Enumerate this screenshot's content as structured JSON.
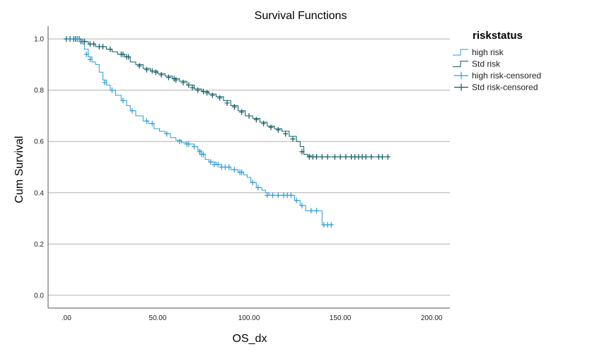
{
  "chart_data": {
    "type": "line",
    "subtype": "kaplan-meier-step",
    "title": "Survival Functions",
    "xlabel": "OS_dx",
    "ylabel": "Cum Survival",
    "xlim": [
      -10,
      210
    ],
    "ylim": [
      -0.05,
      1.05
    ],
    "x_ticks": [
      ".00",
      "50.00",
      "100.00",
      "150.00",
      "200.00"
    ],
    "x_tick_values": [
      0,
      50,
      100,
      150,
      200
    ],
    "y_ticks": [
      "0.0",
      "0.2",
      "0.4",
      "0.6",
      "0.8",
      "1.0"
    ],
    "y_tick_values": [
      0.0,
      0.2,
      0.4,
      0.6,
      0.8,
      1.0
    ],
    "grid": "horizontal",
    "legend_placement": "right",
    "legend": {
      "title": "riskstatus",
      "entries": [
        "high risk",
        "Std risk",
        "high risk-censored",
        "Std risk-censored"
      ]
    },
    "colors": {
      "high_risk": "#2e9bd6",
      "std_risk": "#0e5b63",
      "grid": "#b0b0b0",
      "axis": "#555555"
    },
    "series": [
      {
        "name": "Std risk",
        "steps": [
          [
            0,
            1.0
          ],
          [
            8,
            0.99
          ],
          [
            12,
            0.98
          ],
          [
            16,
            0.97
          ],
          [
            22,
            0.96
          ],
          [
            25,
            0.95
          ],
          [
            28,
            0.94
          ],
          [
            32,
            0.93
          ],
          [
            35,
            0.91
          ],
          [
            38,
            0.9
          ],
          [
            42,
            0.885
          ],
          [
            46,
            0.875
          ],
          [
            50,
            0.865
          ],
          [
            54,
            0.855
          ],
          [
            58,
            0.845
          ],
          [
            62,
            0.835
          ],
          [
            66,
            0.82
          ],
          [
            70,
            0.805
          ],
          [
            74,
            0.795
          ],
          [
            78,
            0.785
          ],
          [
            82,
            0.775
          ],
          [
            86,
            0.76
          ],
          [
            90,
            0.74
          ],
          [
            94,
            0.72
          ],
          [
            98,
            0.7
          ],
          [
            102,
            0.69
          ],
          [
            106,
            0.675
          ],
          [
            110,
            0.66
          ],
          [
            114,
            0.65
          ],
          [
            118,
            0.64
          ],
          [
            122,
            0.62
          ],
          [
            126,
            0.6
          ],
          [
            128,
            0.58
          ],
          [
            130,
            0.55
          ],
          [
            132,
            0.545
          ],
          [
            134,
            0.54
          ],
          [
            177,
            0.54
          ]
        ],
        "censored": [
          [
            0,
            1.0
          ],
          [
            2,
            1.0
          ],
          [
            4,
            1.0
          ],
          [
            5,
            1.0
          ],
          [
            6,
            1.0
          ],
          [
            7,
            1.0
          ],
          [
            8,
            0.99
          ],
          [
            9,
            0.99
          ],
          [
            10,
            0.99
          ],
          [
            13,
            0.98
          ],
          [
            15,
            0.98
          ],
          [
            18,
            0.97
          ],
          [
            20,
            0.97
          ],
          [
            24,
            0.96
          ],
          [
            30,
            0.94
          ],
          [
            31,
            0.94
          ],
          [
            33,
            0.93
          ],
          [
            34,
            0.93
          ],
          [
            40,
            0.895
          ],
          [
            44,
            0.88
          ],
          [
            47,
            0.875
          ],
          [
            49,
            0.87
          ],
          [
            52,
            0.86
          ],
          [
            56,
            0.85
          ],
          [
            59,
            0.845
          ],
          [
            60,
            0.84
          ],
          [
            64,
            0.83
          ],
          [
            67,
            0.82
          ],
          [
            69,
            0.81
          ],
          [
            72,
            0.8
          ],
          [
            75,
            0.795
          ],
          [
            77,
            0.79
          ],
          [
            80,
            0.78
          ],
          [
            84,
            0.77
          ],
          [
            88,
            0.75
          ],
          [
            92,
            0.735
          ],
          [
            96,
            0.715
          ],
          [
            100,
            0.7
          ],
          [
            104,
            0.685
          ],
          [
            108,
            0.67
          ],
          [
            112,
            0.655
          ],
          [
            116,
            0.645
          ],
          [
            120,
            0.63
          ],
          [
            124,
            0.61
          ],
          [
            129,
            0.56
          ],
          [
            133,
            0.54
          ],
          [
            135,
            0.54
          ],
          [
            137,
            0.54
          ],
          [
            140,
            0.54
          ],
          [
            143,
            0.54
          ],
          [
            147,
            0.54
          ],
          [
            150,
            0.54
          ],
          [
            153,
            0.54
          ],
          [
            156,
            0.54
          ],
          [
            158,
            0.54
          ],
          [
            160,
            0.54
          ],
          [
            162,
            0.54
          ],
          [
            164,
            0.54
          ],
          [
            167,
            0.54
          ],
          [
            171,
            0.54
          ],
          [
            173,
            0.54
          ],
          [
            176,
            0.54
          ]
        ]
      },
      {
        "name": "high risk",
        "steps": [
          [
            0,
            1.0
          ],
          [
            7,
            0.99
          ],
          [
            9,
            0.98
          ],
          [
            10,
            0.96
          ],
          [
            12,
            0.93
          ],
          [
            14,
            0.91
          ],
          [
            16,
            0.9
          ],
          [
            18,
            0.87
          ],
          [
            20,
            0.84
          ],
          [
            22,
            0.82
          ],
          [
            24,
            0.8
          ],
          [
            27,
            0.78
          ],
          [
            30,
            0.76
          ],
          [
            33,
            0.74
          ],
          [
            35,
            0.72
          ],
          [
            38,
            0.7
          ],
          [
            42,
            0.68
          ],
          [
            45,
            0.67
          ],
          [
            48,
            0.65
          ],
          [
            51,
            0.64
          ],
          [
            54,
            0.63
          ],
          [
            57,
            0.615
          ],
          [
            60,
            0.605
          ],
          [
            63,
            0.595
          ],
          [
            66,
            0.59
          ],
          [
            70,
            0.58
          ],
          [
            72,
            0.565
          ],
          [
            74,
            0.55
          ],
          [
            76,
            0.53
          ],
          [
            78,
            0.52
          ],
          [
            82,
            0.51
          ],
          [
            85,
            0.5
          ],
          [
            90,
            0.49
          ],
          [
            94,
            0.48
          ],
          [
            97,
            0.47
          ],
          [
            99,
            0.46
          ],
          [
            101,
            0.44
          ],
          [
            104,
            0.42
          ],
          [
            107,
            0.41
          ],
          [
            109,
            0.4
          ],
          [
            111,
            0.39
          ],
          [
            125,
            0.37
          ],
          [
            128,
            0.35
          ],
          [
            131,
            0.33
          ],
          [
            140,
            0.275
          ],
          [
            146,
            0.275
          ]
        ],
        "censored": [
          [
            6,
            1.0
          ],
          [
            11,
            0.94
          ],
          [
            13,
            0.92
          ],
          [
            21,
            0.83
          ],
          [
            25,
            0.8
          ],
          [
            31,
            0.76
          ],
          [
            36,
            0.72
          ],
          [
            44,
            0.68
          ],
          [
            47,
            0.67
          ],
          [
            55,
            0.63
          ],
          [
            62,
            0.6
          ],
          [
            66,
            0.59
          ],
          [
            67,
            0.59
          ],
          [
            70,
            0.58
          ],
          [
            73,
            0.56
          ],
          [
            74,
            0.55
          ],
          [
            75,
            0.55
          ],
          [
            79,
            0.52
          ],
          [
            81,
            0.51
          ],
          [
            83,
            0.51
          ],
          [
            85,
            0.5
          ],
          [
            87,
            0.5
          ],
          [
            89,
            0.5
          ],
          [
            92,
            0.49
          ],
          [
            95,
            0.48
          ],
          [
            96,
            0.48
          ],
          [
            102,
            0.44
          ],
          [
            105,
            0.42
          ],
          [
            110,
            0.39
          ],
          [
            113,
            0.39
          ],
          [
            116,
            0.39
          ],
          [
            119,
            0.39
          ],
          [
            121,
            0.39
          ],
          [
            123,
            0.39
          ],
          [
            126,
            0.37
          ],
          [
            129,
            0.35
          ],
          [
            134,
            0.33
          ],
          [
            137,
            0.33
          ],
          [
            141,
            0.275
          ],
          [
            143,
            0.275
          ],
          [
            145,
            0.275
          ]
        ]
      }
    ]
  }
}
